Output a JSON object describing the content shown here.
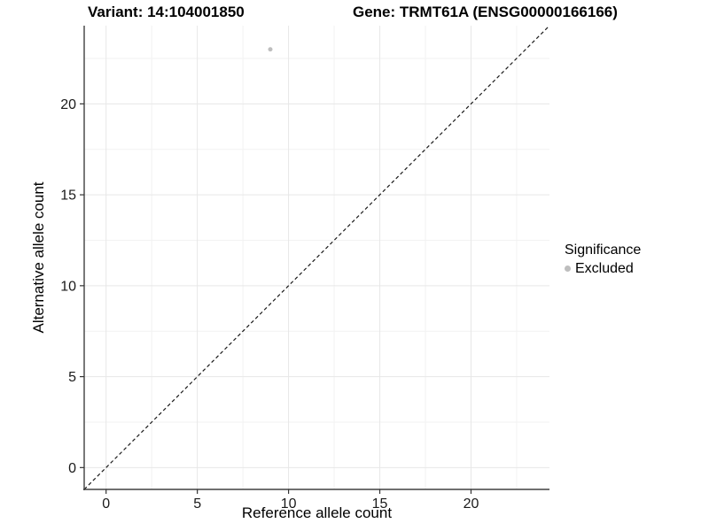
{
  "chart_data": {
    "type": "scatter",
    "title_left": "Variant: 14:104001850",
    "title_right": "Gene: TRMT61A (ENSG00000166166)",
    "xlabel": "Reference allele count",
    "ylabel": "Alternative allele count",
    "xlim": [
      -1.2,
      24.3
    ],
    "ylim": [
      -1.2,
      24.3
    ],
    "xticks": [
      0,
      5,
      10,
      15,
      20
    ],
    "yticks": [
      0,
      5,
      10,
      15,
      20
    ],
    "x_minor_ticks": [
      2.5,
      7.5,
      12.5,
      17.5,
      22.5
    ],
    "y_minor_ticks": [
      2.5,
      7.5,
      12.5,
      17.5,
      22.5
    ],
    "grid": true,
    "points": [
      {
        "x": 9,
        "y": 23,
        "significance": "Excluded"
      }
    ],
    "identity_line": {
      "slope": 1,
      "intercept": 0,
      "style": "dashed"
    },
    "legend": {
      "position": "right",
      "title": "Significance",
      "entries": [
        {
          "label": "Excluded",
          "color": "#bebebe"
        }
      ]
    },
    "colors": {
      "background": "#ffffff",
      "point": "#bebebe",
      "axis_line": "#404040",
      "tick_mark": "#333333",
      "tick_label": "#1a1a1a",
      "grid_major": "#e7e7e7",
      "grid_minor": "#f2f2f2",
      "identity_line": "#1a1a1a"
    }
  }
}
